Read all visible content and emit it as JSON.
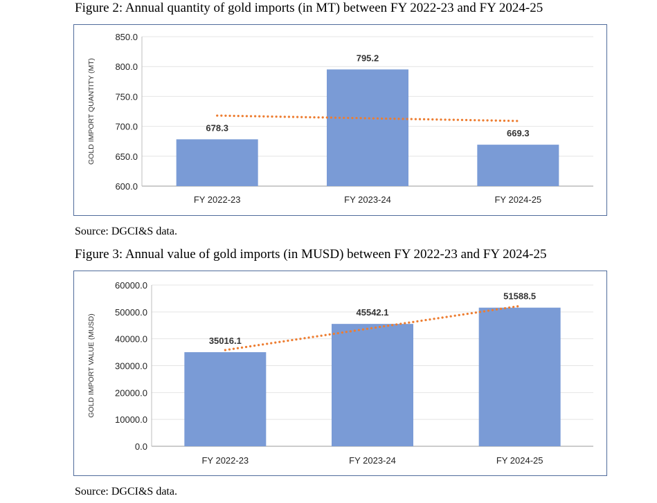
{
  "figures": [
    {
      "title": "Figure 2: Annual quantity of gold imports (in MT) between FY 2022-23 and FY 2024-25",
      "source": "Source: DGCI&S data.",
      "chart_data": {
        "type": "bar",
        "title": "",
        "xlabel": "",
        "ylabel": "GOLD IMPORT QUANTITY (MT)",
        "categories": [
          "FY 2022-23",
          "FY 2023-24",
          "FY 2024-25"
        ],
        "values": [
          678.3,
          795.2,
          669.3
        ],
        "data_labels": [
          "678.3",
          "795.2",
          "669.3"
        ],
        "ylim": [
          600,
          850
        ],
        "yticks": [
          600,
          650,
          700,
          750,
          800,
          850
        ],
        "ytick_labels": [
          "600.0",
          "650.0",
          "700.0",
          "750.0",
          "800.0",
          "850.0"
        ],
        "trendline": {
          "type": "linear",
          "style": "dotted",
          "start": 718.0,
          "end": 709.0
        },
        "grid": true,
        "legend": "none",
        "colors": {
          "bar": "#7a9bd6",
          "trend": "#ed7d31"
        }
      }
    },
    {
      "title": "Figure 3: Annual value of gold imports (in MUSD) between FY 2022-23 and FY 2024-25",
      "source": "Source: DGCI&S data.",
      "chart_data": {
        "type": "bar",
        "title": "",
        "xlabel": "",
        "ylabel": "GOLD IMPORT VALUE (MUSD)",
        "categories": [
          "FY 2022-23",
          "FY 2023-24",
          "FY 2024-25"
        ],
        "values": [
          35016.1,
          45542.1,
          51588.5
        ],
        "data_labels": [
          "35016.1",
          "45542.1",
          "51588.5"
        ],
        "ylim": [
          0,
          60000
        ],
        "yticks": [
          0,
          10000,
          20000,
          30000,
          40000,
          50000,
          60000
        ],
        "ytick_labels": [
          "0.0",
          "10000.0",
          "20000.0",
          "30000.0",
          "40000.0",
          "50000.0",
          "60000.0"
        ],
        "trendline": {
          "type": "linear",
          "style": "dotted",
          "start": 35800,
          "end": 52200
        },
        "grid": true,
        "legend": "none",
        "colors": {
          "bar": "#7a9bd6",
          "trend": "#ed7d31"
        }
      }
    }
  ]
}
